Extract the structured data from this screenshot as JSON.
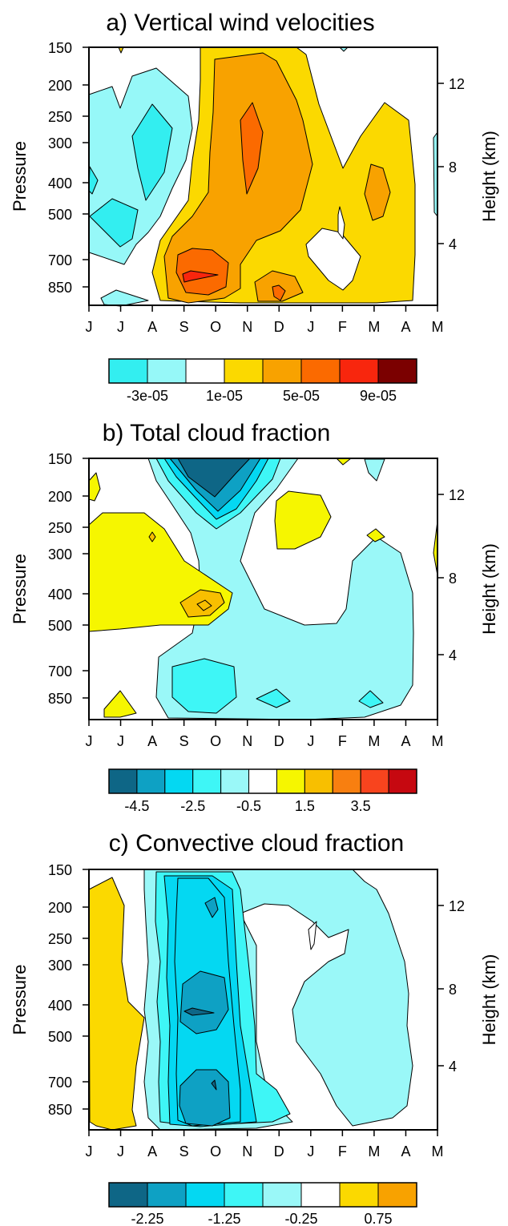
{
  "chart_data": [
    {
      "type": "heatmap",
      "title": "a) Vertical wind velocities",
      "ylabel": "Pressure",
      "y2label": "Height (km)",
      "x_ticks": [
        "J",
        "J",
        "A",
        "S",
        "O",
        "N",
        "D",
        "J",
        "F",
        "M",
        "A",
        "M"
      ],
      "y_ticks": [
        "150",
        "200",
        "250",
        "300",
        "400",
        "500",
        "700",
        "850"
      ],
      "y2_ticks": [
        "12",
        "8",
        "4"
      ],
      "colorbar": {
        "colors": [
          "#33eef0",
          "#96f8f8",
          "#ffffff",
          "#fbd900",
          "#f8a200",
          "#fb6a00",
          "#f8260d",
          "#7b0000"
        ],
        "labels": [
          "-3e-05",
          "1e-05",
          "5e-05",
          "9e-05"
        ]
      }
    },
    {
      "type": "heatmap",
      "title": "b) Total cloud fraction",
      "ylabel": "Pressure",
      "y2label": "Height (km)",
      "x_ticks": [
        "J",
        "J",
        "A",
        "S",
        "O",
        "N",
        "D",
        "J",
        "F",
        "M",
        "A",
        "M"
      ],
      "y_ticks": [
        "150",
        "200",
        "250",
        "300",
        "400",
        "500",
        "700",
        "850"
      ],
      "y2_ticks": [
        "12",
        "8",
        "4"
      ],
      "colorbar": {
        "colors": [
          "#0e6686",
          "#0ea1c4",
          "#04d8f2",
          "#3ef6f6",
          "#9af8f8",
          "#ffffff",
          "#f6f600",
          "#f8bf00",
          "#f87f10",
          "#f8441e",
          "#c60810"
        ],
        "labels": [
          "-4.5",
          "-2.5",
          "-0.5",
          "1.5",
          "3.5"
        ]
      }
    },
    {
      "type": "heatmap",
      "title": "c) Convective cloud fraction",
      "ylabel": "Pressure",
      "y2label": "Height (km)",
      "x_ticks": [
        "J",
        "J",
        "A",
        "S",
        "O",
        "N",
        "D",
        "J",
        "F",
        "M",
        "A",
        "M"
      ],
      "y_ticks": [
        "150",
        "200",
        "250",
        "300",
        "400",
        "500",
        "700",
        "850"
      ],
      "y2_ticks": [
        "12",
        "8",
        "4"
      ],
      "colorbar": {
        "colors": [
          "#0e6686",
          "#0ea1c4",
          "#04d8f2",
          "#3ef6f6",
          "#9af8f8",
          "#ffffff",
          "#fbd900",
          "#f8a200"
        ],
        "labels": [
          "-2.25",
          "-1.25",
          "-0.25",
          "0.75"
        ]
      }
    }
  ]
}
